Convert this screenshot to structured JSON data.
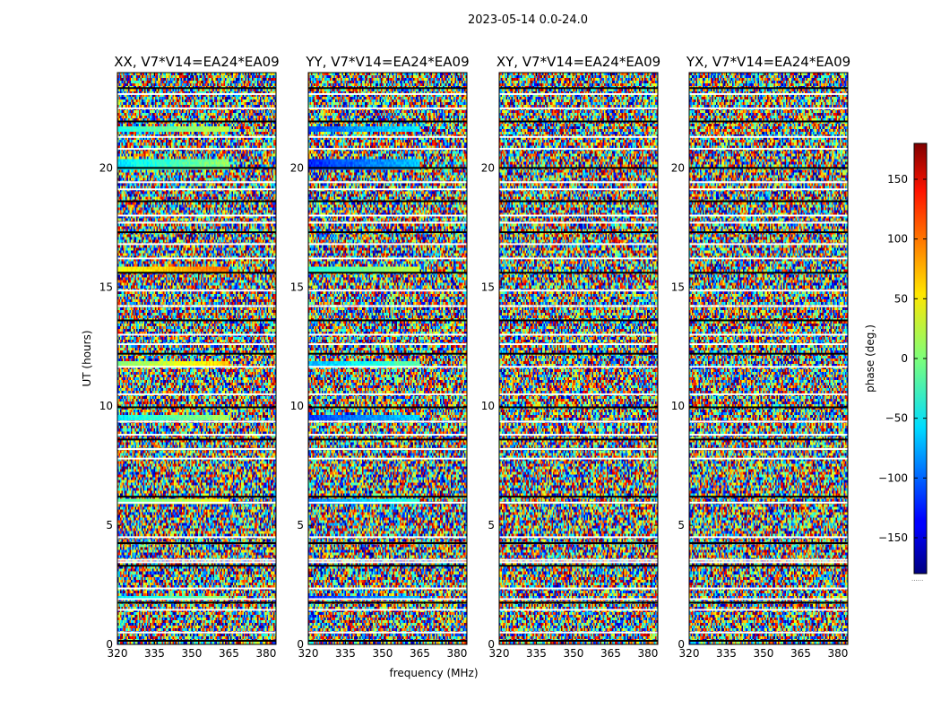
{
  "chart_data": {
    "type": "heatmap",
    "title": "2023-05-14 0.0-24.0",
    "xlabel": "frequency (MHz)",
    "ylabel": "UT (hours)",
    "xlim": [
      320,
      384
    ],
    "ylim": [
      0,
      24
    ],
    "x_ticks": [
      "320",
      "335",
      "350",
      "365",
      "380"
    ],
    "x_tick_values": [
      320,
      335,
      350,
      365,
      380
    ],
    "y_ticks": [
      "0",
      "5",
      "10",
      "15",
      "20"
    ],
    "y_tick_values": [
      0,
      5,
      10,
      15,
      20
    ],
    "colorbar": {
      "label": "phase (deg.)",
      "range": [
        -180,
        180
      ],
      "ticks": [
        "150",
        "100",
        "50",
        "0",
        "−50",
        "−100",
        "−150"
      ],
      "tick_values": [
        150,
        100,
        50,
        0,
        -50,
        -100,
        -150
      ],
      "colormap": "jet",
      "footnote": "......"
    },
    "panels": [
      {
        "title": "XX, V7*V14=EA24*EA09",
        "polarization": "XX"
      },
      {
        "title": "YY, V7*V14=EA24*EA09",
        "polarization": "YY"
      },
      {
        "title": "XY, V7*V14=EA24*EA09",
        "polarization": "XY"
      },
      {
        "title": "YX, V7*V14=EA24*EA09",
        "polarization": "YX"
      }
    ],
    "flagged_hours": [
      0.15,
      0.5,
      1.45,
      1.75,
      1.9,
      2.35,
      3.3,
      3.45,
      3.55,
      4.25,
      4.5,
      5.95,
      6.2,
      7.8,
      8.2,
      8.6,
      8.8,
      9.35,
      9.95,
      10.5,
      11.65,
      12.2,
      12.6,
      13.0,
      13.6,
      14.2,
      14.85,
      15.6,
      16.2,
      16.8,
      17.3,
      17.7,
      18.0,
      18.6,
      19.1,
      19.4,
      20.0,
      20.8,
      21.3,
      21.95,
      22.5,
      23.1,
      23.35
    ]
  }
}
